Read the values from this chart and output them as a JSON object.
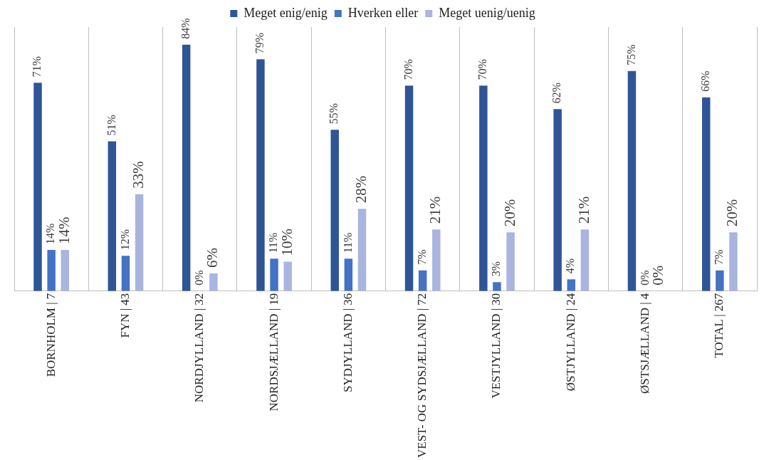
{
  "chart_data": {
    "type": "bar",
    "categories": [
      "BORNHOLM | 7",
      "FYN | 43",
      "NORDJYLLAND | 32",
      "NORDSJÆLLAND | 19",
      "SYDJYLLAND | 36",
      "VEST- OG SYDSJÆLLAND | 72",
      "VESTJYLLAND | 30",
      "ØSTJYLLAND | 24",
      "ØSTSJÆLLAND | 4",
      "TOTAL | 267"
    ],
    "series": [
      {
        "name": "Meget enig/enig",
        "color": "#2f5597",
        "values": [
          71,
          51,
          84,
          79,
          55,
          70,
          70,
          62,
          75,
          66
        ],
        "value_labels": [
          "71%",
          "51%",
          "84%",
          "79%",
          "55%",
          "70%",
          "70%",
          "62%",
          "75%",
          "66%"
        ]
      },
      {
        "name": "Hverken eller",
        "color": "#4472c4",
        "values": [
          14,
          12,
          0,
          11,
          11,
          7,
          3,
          4,
          0,
          7
        ],
        "value_labels": [
          "14%",
          "12%",
          "0%",
          "11%",
          "11%",
          "7%",
          "3%",
          "4%",
          "0%",
          "7%"
        ]
      },
      {
        "name": "Meget uenig/uenig",
        "color": "#a9b5de",
        "values": [
          14,
          33,
          6,
          10,
          28,
          21,
          20,
          21,
          0,
          20
        ],
        "value_labels": [
          "14%",
          "33%",
          "6%",
          "10%",
          "28%",
          "21%",
          "20%",
          "21%",
          "0%",
          "20%"
        ]
      }
    ],
    "ylim": [
      0,
      90
    ],
    "tick_labels": "x",
    "grid": "x",
    "legend": "top"
  }
}
